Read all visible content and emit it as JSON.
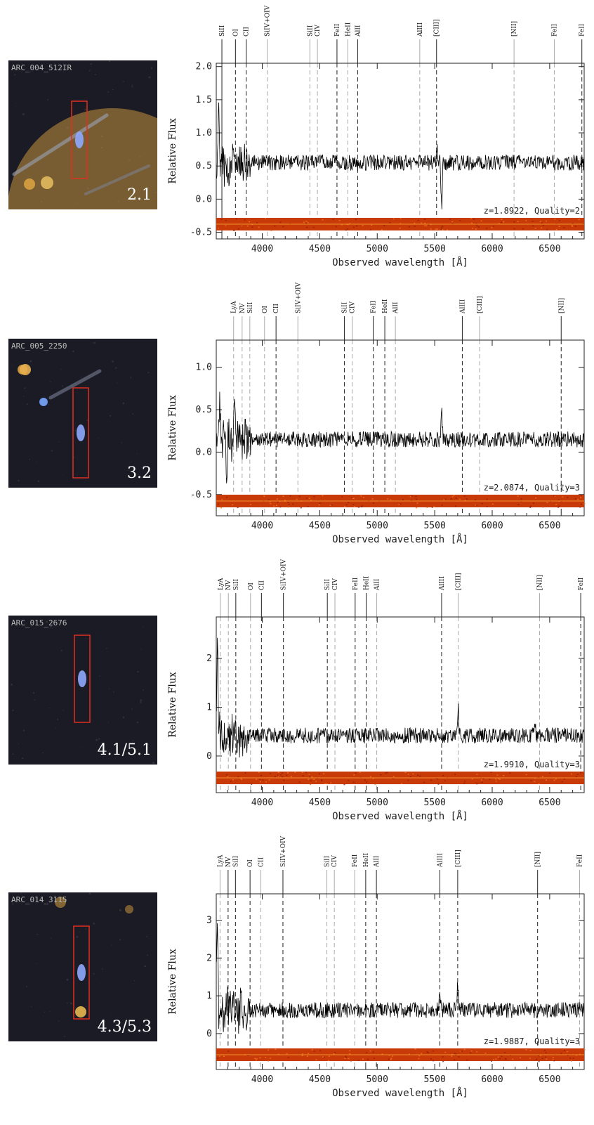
{
  "colors": {
    "slit": "#e03020",
    "strip": "#c83a08",
    "axis": "#222222",
    "spectrum": "#000000"
  },
  "chart_data": [
    {
      "type": "line",
      "object_name": "ARC_004_512IR",
      "grade": "2.1",
      "xlabel": "Observed wavelength [Å]",
      "ylabel": "Relative Flux",
      "xlim": [
        3600,
        6800
      ],
      "ylim": [
        -0.6,
        2.05
      ],
      "yticks": [
        "-0.5",
        "0.0",
        "0.5",
        "1.0",
        "1.5",
        "2.0"
      ],
      "xticks": [
        "4000",
        "4500",
        "5000",
        "5500",
        "6000",
        "6500"
      ],
      "redshift_label": "z=1.8922, Quality=2",
      "continuum": 0.55,
      "line_markers": [
        {
          "label": "SiII",
          "x": 3649,
          "style": "solid"
        },
        {
          "label": "OI",
          "x": 3767,
          "style": "dashed"
        },
        {
          "label": "CII",
          "x": 3861,
          "style": "dashed"
        },
        {
          "label": "SiIV+OIV",
          "x": 4043,
          "style": "faint"
        },
        {
          "label": "SiII",
          "x": 4414,
          "style": "faint"
        },
        {
          "label": "CIV",
          "x": 4480,
          "style": "faint"
        },
        {
          "label": "FeII",
          "x": 4650,
          "style": "dashed"
        },
        {
          "label": "HeII",
          "x": 4744,
          "style": "faint"
        },
        {
          "label": "AlII",
          "x": 4830,
          "style": "dashed"
        },
        {
          "label": "AlIII",
          "x": 5370,
          "style": "faint"
        },
        {
          "label": "[CIII]",
          "x": 5516,
          "style": "dashed"
        },
        {
          "label": "[NII]",
          "x": 6190,
          "style": "faint"
        },
        {
          "label": "FeII",
          "x": 6540,
          "style": "faint"
        },
        {
          "label": "FeII",
          "x": 6780,
          "style": "dashed"
        }
      ],
      "features": [
        {
          "x": 3620,
          "height": 0.9
        },
        {
          "x": 3700,
          "height": -0.45
        },
        {
          "x": 5520,
          "height": 0.2
        },
        {
          "x": 5560,
          "height": -0.75
        }
      ]
    },
    {
      "type": "line",
      "object_name": "ARC_005_2250",
      "grade": "3.2",
      "xlabel": "Observed wavelength [Å]",
      "ylabel": "Relative Flux",
      "xlim": [
        3600,
        6800
      ],
      "ylim": [
        -0.75,
        1.32
      ],
      "yticks": [
        "-0.5",
        "0.0",
        "0.5",
        "1.0"
      ],
      "xticks": [
        "4000",
        "4500",
        "5000",
        "5500",
        "6000",
        "6500"
      ],
      "redshift_label": "z=2.0874, Quality=3",
      "continuum": 0.15,
      "line_markers": [
        {
          "label": "LyA",
          "x": 3751,
          "style": "faint"
        },
        {
          "label": "NV",
          "x": 3825,
          "style": "faint"
        },
        {
          "label": "SiII",
          "x": 3892,
          "style": "faint"
        },
        {
          "label": "OI",
          "x": 4020,
          "style": "faint"
        },
        {
          "label": "CII",
          "x": 4120,
          "style": "dashed"
        },
        {
          "label": "SiIV+OIV",
          "x": 4310,
          "style": "faint"
        },
        {
          "label": "SiII",
          "x": 4715,
          "style": "dashed"
        },
        {
          "label": "CIV",
          "x": 4783,
          "style": "faint"
        },
        {
          "label": "FeII",
          "x": 4965,
          "style": "dashed"
        },
        {
          "label": "HeII",
          "x": 5066,
          "style": "dashed"
        },
        {
          "label": "AlII",
          "x": 5158,
          "style": "faint"
        },
        {
          "label": "AlIII",
          "x": 5740,
          "style": "dashed"
        },
        {
          "label": "[CIII]",
          "x": 5890,
          "style": "faint"
        },
        {
          "label": "[NII]",
          "x": 6600,
          "style": "dashed"
        }
      ],
      "features": [
        {
          "x": 3630,
          "height": 0.5
        },
        {
          "x": 3690,
          "height": -0.45
        },
        {
          "x": 3760,
          "height": 0.55
        },
        {
          "x": 5560,
          "height": 0.35
        }
      ]
    },
    {
      "type": "line",
      "object_name": "ARC_015_2676",
      "grade": "4.1/5.1",
      "xlabel": "Observed wavelength [Å]",
      "ylabel": "Relative Flux",
      "xlim": [
        3600,
        6800
      ],
      "ylim": [
        -0.75,
        2.85
      ],
      "yticks": [
        "0",
        "1",
        "2"
      ],
      "xticks": [
        "4000",
        "4500",
        "5000",
        "5500",
        "6000",
        "6500"
      ],
      "redshift_label": "z=1.9910, Quality=3",
      "continuum": 0.42,
      "line_markers": [
        {
          "label": "LyA",
          "x": 3636,
          "style": "faint"
        },
        {
          "label": "NV",
          "x": 3705,
          "style": "faint"
        },
        {
          "label": "SiII",
          "x": 3770,
          "style": "dashed"
        },
        {
          "label": "OI",
          "x": 3898,
          "style": "faint"
        },
        {
          "label": "CII",
          "x": 3993,
          "style": "dashed"
        },
        {
          "label": "SiIV+OIV",
          "x": 4184,
          "style": "dashed"
        },
        {
          "label": "SiII",
          "x": 4566,
          "style": "dashed"
        },
        {
          "label": "CIV",
          "x": 4632,
          "style": "faint"
        },
        {
          "label": "FeII",
          "x": 4808,
          "style": "dashed"
        },
        {
          "label": "HeII",
          "x": 4904,
          "style": "dashed"
        },
        {
          "label": "AlII",
          "x": 4996,
          "style": "faint"
        },
        {
          "label": "AlIII",
          "x": 5560,
          "style": "dashed"
        },
        {
          "label": "[CIII]",
          "x": 5705,
          "style": "faint"
        },
        {
          "label": "[NII]",
          "x": 6412,
          "style": "faint"
        },
        {
          "label": "FeII",
          "x": 6770,
          "style": "dashed"
        }
      ],
      "features": [
        {
          "x": 3610,
          "height": 1.9
        },
        {
          "x": 3660,
          "height": -0.5
        },
        {
          "x": 5705,
          "height": 0.55
        },
        {
          "x": 6370,
          "height": 0.35
        }
      ]
    },
    {
      "type": "line",
      "object_name": "ARC_014_3115",
      "grade": "4.3/5.3",
      "xlabel": "Observed wavelength [Å]",
      "ylabel": "Relative Flux",
      "xlim": [
        3600,
        6800
      ],
      "ylim": [
        -0.95,
        3.7
      ],
      "yticks": [
        "0",
        "1",
        "2",
        "3"
      ],
      "xticks": [
        "4000",
        "4500",
        "5000",
        "5500",
        "6000",
        "6500"
      ],
      "redshift_label": "z=1.9887, Quality=3",
      "continuum": 0.62,
      "line_markers": [
        {
          "label": "LyA",
          "x": 3633,
          "style": "faint"
        },
        {
          "label": "NV",
          "x": 3703,
          "style": "dashed"
        },
        {
          "label": "SiII",
          "x": 3767,
          "style": "dashed"
        },
        {
          "label": "OI",
          "x": 3894,
          "style": "dashed"
        },
        {
          "label": "CII",
          "x": 3988,
          "style": "faint"
        },
        {
          "label": "SiIV+OIV",
          "x": 4180,
          "style": "dashed"
        },
        {
          "label": "SiII",
          "x": 4562,
          "style": "faint"
        },
        {
          "label": "CIV",
          "x": 4627,
          "style": "faint"
        },
        {
          "label": "FeII",
          "x": 4804,
          "style": "faint"
        },
        {
          "label": "HeII",
          "x": 4900,
          "style": "dashed"
        },
        {
          "label": "AlII",
          "x": 4993,
          "style": "dashed"
        },
        {
          "label": "AlIII",
          "x": 5545,
          "style": "dashed"
        },
        {
          "label": "[CIII]",
          "x": 5700,
          "style": "dashed"
        },
        {
          "label": "[NII]",
          "x": 6395,
          "style": "dashed"
        },
        {
          "label": "FeII",
          "x": 6760,
          "style": "faint"
        }
      ],
      "features": [
        {
          "x": 3610,
          "height": 2.6
        },
        {
          "x": 5545,
          "height": 0.4
        },
        {
          "x": 5700,
          "height": 0.75
        }
      ]
    }
  ]
}
